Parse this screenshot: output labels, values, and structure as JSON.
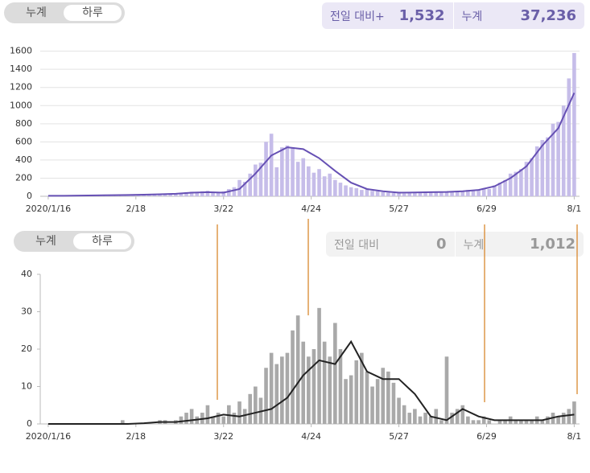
{
  "panels": [
    {
      "toggle": [
        "누계",
        "하루"
      ],
      "change_label": "전일 대비+",
      "change_value": "1,532",
      "total_label": "누계",
      "total_value": "37,236"
    },
    {
      "toggle": [
        "누계",
        "하루"
      ],
      "change_label": "전일 대비",
      "change_value": "0",
      "total_label": "누계",
      "total_value": "1,012"
    }
  ],
  "chart_data": [
    {
      "type": "bar",
      "grid": true,
      "xlim": [
        -3,
        200
      ],
      "xticks": [
        {
          "value": 0,
          "label": "2020/1/16"
        },
        {
          "value": 33,
          "label": "2/18"
        },
        {
          "value": 66,
          "label": "3/22"
        },
        {
          "value": 99,
          "label": "4/24"
        },
        {
          "value": 132,
          "label": "5/27"
        },
        {
          "value": 165,
          "label": "6/29"
        },
        {
          "value": 198,
          "label": "8/1"
        }
      ],
      "ylim": [
        0,
        1650
      ],
      "yticks": [
        0,
        200,
        400,
        600,
        800,
        1000,
        1200,
        1400,
        1600
      ],
      "series": [
        {
          "type": "bar",
          "color": "#c6bde9",
          "x": [
            0,
            2,
            4,
            6,
            8,
            10,
            12,
            14,
            16,
            18,
            20,
            22,
            24,
            26,
            28,
            30,
            32,
            34,
            36,
            38,
            40,
            42,
            44,
            46,
            48,
            50,
            52,
            54,
            56,
            58,
            60,
            62,
            64,
            66,
            68,
            70,
            72,
            74,
            76,
            78,
            80,
            82,
            84,
            86,
            88,
            90,
            92,
            94,
            96,
            98,
            100,
            102,
            104,
            106,
            108,
            110,
            112,
            114,
            116,
            118,
            120,
            122,
            124,
            126,
            128,
            130,
            132,
            134,
            136,
            138,
            140,
            142,
            144,
            146,
            148,
            150,
            152,
            154,
            156,
            158,
            160,
            162,
            164,
            166,
            168,
            170,
            172,
            174,
            176,
            178,
            180,
            182,
            184,
            186,
            188,
            190,
            192,
            194,
            196,
            198
          ],
          "values": [
            2,
            3,
            4,
            5,
            6,
            8,
            6,
            9,
            10,
            8,
            12,
            10,
            11,
            14,
            12,
            15,
            18,
            16,
            20,
            22,
            25,
            20,
            28,
            30,
            35,
            40,
            45,
            50,
            48,
            55,
            60,
            50,
            45,
            55,
            80,
            100,
            180,
            160,
            250,
            350,
            370,
            600,
            690,
            320,
            540,
            560,
            540,
            380,
            420,
            330,
            260,
            300,
            220,
            250,
            180,
            150,
            120,
            100,
            90,
            70,
            80,
            60,
            55,
            45,
            40,
            35,
            50,
            30,
            35,
            40,
            45,
            40,
            50,
            45,
            40,
            55,
            50,
            60,
            55,
            70,
            65,
            70,
            90,
            80,
            120,
            150,
            180,
            250,
            270,
            300,
            380,
            420,
            550,
            620,
            650,
            800,
            820,
            1000,
            1300,
            1580
          ]
        },
        {
          "type": "line",
          "color": "#6650b4",
          "x": [
            0,
            6,
            12,
            18,
            24,
            30,
            36,
            42,
            48,
            54,
            60,
            66,
            72,
            78,
            84,
            90,
            96,
            102,
            108,
            114,
            120,
            126,
            132,
            138,
            144,
            150,
            156,
            162,
            168,
            174,
            180,
            186,
            192,
            198
          ],
          "values": [
            5,
            6,
            8,
            10,
            12,
            14,
            18,
            22,
            28,
            40,
            45,
            40,
            80,
            250,
            450,
            540,
            520,
            420,
            280,
            150,
            80,
            55,
            40,
            42,
            45,
            48,
            55,
            70,
            110,
            200,
            330,
            560,
            750,
            1140
          ]
        }
      ]
    },
    {
      "type": "bar",
      "grid": false,
      "xlim": [
        -3,
        200
      ],
      "xticks": [
        {
          "value": 0,
          "label": "2020/1/16"
        },
        {
          "value": 33,
          "label": "2/18"
        },
        {
          "value": 66,
          "label": "3/22"
        },
        {
          "value": 99,
          "label": "4/24"
        },
        {
          "value": 132,
          "label": "5/27"
        },
        {
          "value": 165,
          "label": "6/29"
        },
        {
          "value": 198,
          "label": "8/1"
        }
      ],
      "ylim": [
        0,
        40
      ],
      "yticks": [
        0,
        10,
        20,
        30,
        40
      ],
      "series": [
        {
          "type": "bar",
          "color": "#a9a9a9",
          "x": [
            0,
            2,
            4,
            6,
            8,
            10,
            12,
            14,
            16,
            18,
            20,
            22,
            24,
            26,
            28,
            30,
            32,
            34,
            36,
            38,
            40,
            42,
            44,
            46,
            48,
            50,
            52,
            54,
            56,
            58,
            60,
            62,
            64,
            66,
            68,
            70,
            72,
            74,
            76,
            78,
            80,
            82,
            84,
            86,
            88,
            90,
            92,
            94,
            96,
            98,
            100,
            102,
            104,
            106,
            108,
            110,
            112,
            114,
            116,
            118,
            120,
            122,
            124,
            126,
            128,
            130,
            132,
            134,
            136,
            138,
            140,
            142,
            144,
            146,
            148,
            150,
            152,
            154,
            156,
            158,
            160,
            162,
            164,
            166,
            168,
            170,
            172,
            174,
            176,
            178,
            180,
            182,
            184,
            186,
            188,
            190,
            192,
            194,
            196,
            198
          ],
          "values": [
            0,
            0,
            0,
            0,
            0,
            0,
            0,
            0,
            0,
            0,
            0,
            0,
            0,
            0,
            1,
            0,
            0,
            0,
            0,
            0,
            0,
            1,
            1,
            0,
            1,
            2,
            3,
            4,
            2,
            3,
            5,
            2,
            3,
            2,
            5,
            3,
            6,
            4,
            8,
            10,
            7,
            15,
            19,
            16,
            18,
            19,
            25,
            29,
            22,
            18,
            20,
            31,
            22,
            18,
            27,
            20,
            12,
            13,
            17,
            19,
            14,
            10,
            12,
            15,
            14,
            11,
            7,
            5,
            3,
            4,
            2,
            3,
            2,
            4,
            1,
            18,
            3,
            4,
            5,
            2,
            1,
            1,
            2,
            1,
            0,
            1,
            1,
            2,
            1,
            1,
            1,
            1,
            2,
            1,
            2,
            3,
            2,
            3,
            4,
            6
          ]
        },
        {
          "type": "line",
          "color": "#222222",
          "x": [
            0,
            6,
            12,
            18,
            24,
            30,
            36,
            42,
            48,
            54,
            60,
            66,
            72,
            78,
            84,
            90,
            96,
            102,
            108,
            114,
            120,
            126,
            132,
            138,
            144,
            150,
            156,
            162,
            168,
            174,
            180,
            186,
            192,
            198
          ],
          "values": [
            0,
            0,
            0,
            0,
            0,
            0,
            0.2,
            0.5,
            0.5,
            1,
            1.5,
            2.5,
            2,
            3,
            4,
            7,
            13,
            17,
            16,
            22,
            14,
            12,
            12,
            8,
            2,
            1,
            4,
            2,
            1,
            1,
            1,
            1,
            2,
            2.5
          ]
        }
      ]
    }
  ]
}
